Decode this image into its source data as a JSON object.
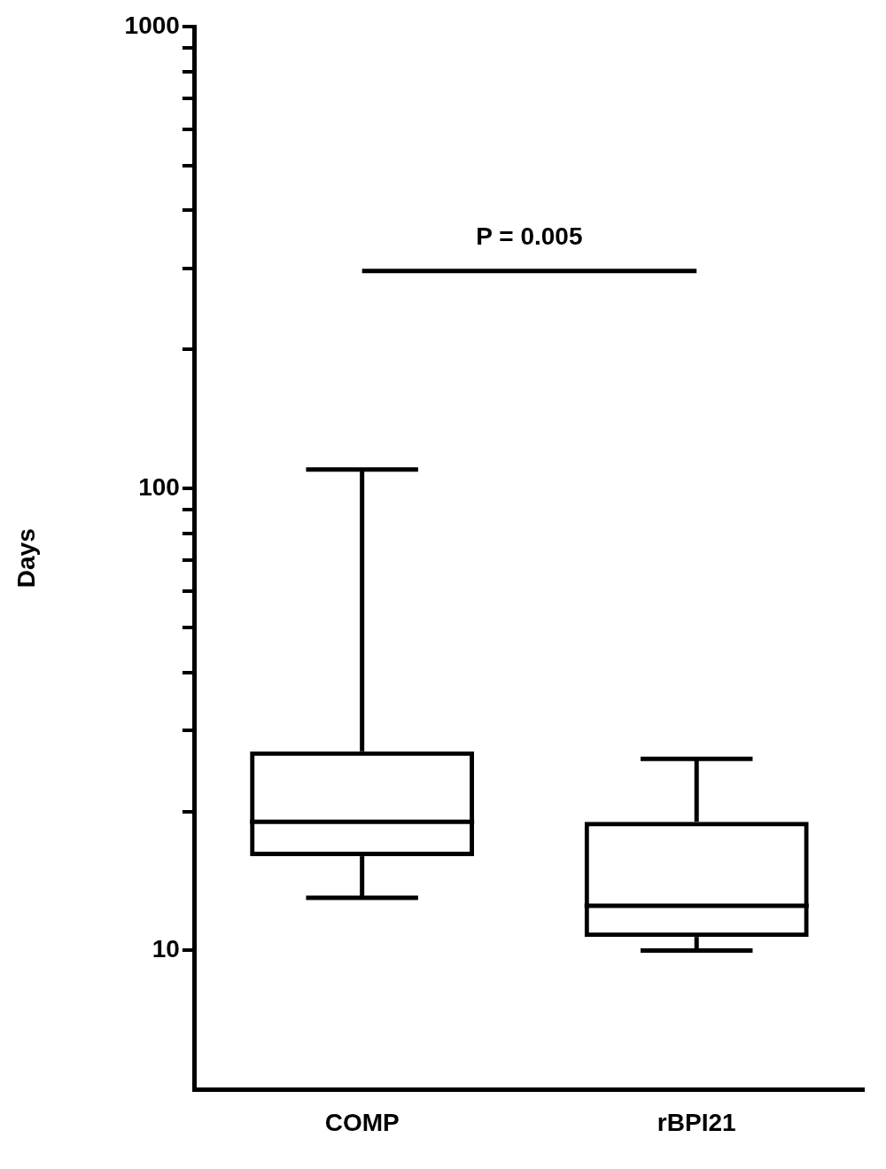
{
  "chart_data": {
    "type": "box",
    "ylabel": "Days",
    "categories": [
      "COMP",
      "rBPI21"
    ],
    "boxes": [
      {
        "low": 13,
        "q1": 16,
        "median": 19,
        "q3": 27,
        "high": 110
      },
      {
        "low": 10,
        "q1": 10.7,
        "median": 12.5,
        "q3": 19,
        "high": 26
      }
    ],
    "log": true,
    "ylim": [
      5,
      1000
    ],
    "yticks": [
      10,
      {
        "value": 20,
        "label": null
      },
      {
        "value": 30,
        "label": null
      },
      {
        "value": 40,
        "label": null
      },
      {
        "value": 50,
        "label": null
      },
      {
        "value": 60,
        "label": null
      },
      {
        "value": 70,
        "label": null
      },
      {
        "value": 80,
        "label": null
      },
      {
        "value": 90,
        "label": null
      },
      100,
      {
        "value": 200,
        "label": null
      },
      {
        "value": 300,
        "label": null
      },
      {
        "value": 400,
        "label": null
      },
      {
        "value": 500,
        "label": null
      },
      {
        "value": 600,
        "label": null
      },
      {
        "value": 700,
        "label": null
      },
      {
        "value": 800,
        "label": null
      },
      {
        "value": 900,
        "label": null
      },
      1000
    ],
    "annotations": [
      "P = 0.005"
    ],
    "grid": false,
    "legend": false,
    "color": "#000000"
  }
}
